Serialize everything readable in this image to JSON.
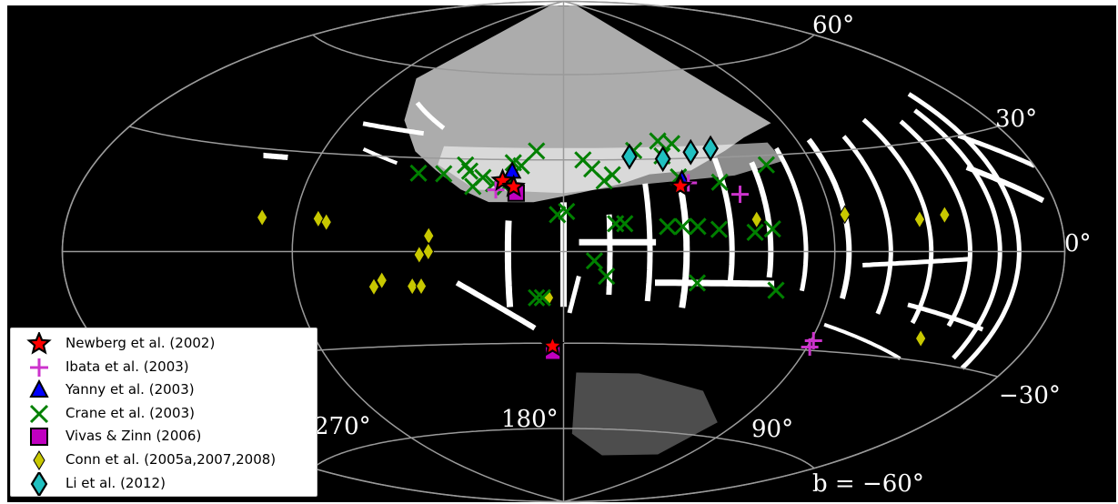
{
  "projection": "hammer-aitoff",
  "coordinates": {
    "longitude": "galactic l",
    "latitude": "galactic b"
  },
  "grid_labels": {
    "lat_p60": "60°",
    "lat_p30": "30°",
    "lat_0": "0°",
    "lat_m30": "−30°",
    "lat_m60": "b = −60°",
    "lon_270": "270°",
    "lon_180": "180°",
    "lon_90": "90°"
  },
  "colors": {
    "sky_background": "#000000",
    "sky_density": "#ffffff",
    "grid": "#9a9a9a",
    "newberg": "#ff0000",
    "ibata": "#cc33cc",
    "yanny": "#0000ff",
    "crane": "#008000",
    "vivas": "#c000c0",
    "conn": "#c8c800",
    "li": "#20c0c0"
  },
  "legend": [
    {
      "label": "Newberg et al. (2002)",
      "symbol": "star",
      "color_key": "newberg"
    },
    {
      "label": "Ibata et al. (2003)",
      "symbol": "plus",
      "color_key": "ibata"
    },
    {
      "label": "Yanny et al. (2003)",
      "symbol": "triangle",
      "color_key": "yanny"
    },
    {
      "label": "Crane et al. (2003)",
      "symbol": "x",
      "color_key": "crane"
    },
    {
      "label": "Vivas & Zinn (2006)",
      "symbol": "square",
      "color_key": "vivas"
    },
    {
      "label": "Conn et al. (2005a,2007,2008)",
      "symbol": "diamond",
      "color_key": "conn"
    },
    {
      "label": "Li et al. (2012)",
      "symbol": "diamond-large",
      "color_key": "li"
    }
  ],
  "detections": {
    "newberg": [
      [
        201,
        23
      ],
      [
        197,
        21
      ],
      [
        140,
        21
      ],
      [
        184,
        -31
      ],
      [
        140,
        21
      ]
    ],
    "ibata": [
      [
        203,
        20
      ],
      [
        120,
        18
      ],
      [
        137,
        22
      ],
      [
        89,
        -29
      ],
      [
        89,
        -27
      ]
    ],
    "yanny": [
      [
        198,
        26
      ],
      [
        139,
        23
      ]
    ],
    "crane": [
      [
        231,
        25
      ],
      [
        222,
        25
      ],
      [
        215,
        28
      ],
      [
        213,
        26
      ],
      [
        208,
        24
      ],
      [
        204,
        22
      ],
      [
        200,
        21
      ],
      [
        211,
        21
      ],
      [
        195,
        28
      ],
      [
        198,
        29
      ],
      [
        190,
        33
      ],
      [
        173,
        30
      ],
      [
        170,
        27
      ],
      [
        166,
        23
      ],
      [
        163,
        25
      ],
      [
        154,
        33
      ],
      [
        144,
        36
      ],
      [
        144,
        31
      ],
      [
        139,
        35
      ],
      [
        140,
        24
      ],
      [
        126,
        22
      ],
      [
        107,
        27
      ],
      [
        182,
        12
      ],
      [
        179,
        13
      ],
      [
        163,
        9
      ],
      [
        160,
        9
      ],
      [
        146,
        8
      ],
      [
        141,
        8
      ],
      [
        136,
        8
      ],
      [
        129,
        7
      ],
      [
        117,
        6
      ],
      [
        111,
        7
      ],
      [
        170,
        -3
      ],
      [
        166,
        -8
      ],
      [
        189,
        -15
      ],
      [
        187,
        -15
      ],
      [
        136,
        -10
      ],
      [
        109,
        -12
      ]
    ],
    "vivas": [
      [
        196,
        19
      ],
      [
        184,
        -33
      ]
    ],
    "conn": [
      [
        282,
        10
      ],
      [
        262,
        10
      ],
      [
        259,
        9
      ],
      [
        224,
        5
      ],
      [
        224,
        0
      ],
      [
        227,
        -1
      ],
      [
        230,
        -11
      ],
      [
        240,
        -9
      ],
      [
        243,
        -11
      ],
      [
        185,
        -15
      ],
      [
        116,
        10
      ],
      [
        85,
        11
      ],
      [
        58,
        9
      ],
      [
        48,
        10
      ],
      [
        48,
        -24
      ],
      [
        227,
        -11
      ]
    ],
    "li": [
      [
        144,
        30
      ],
      [
        156,
        31
      ],
      [
        133,
        32
      ],
      [
        125,
        33
      ]
    ]
  }
}
